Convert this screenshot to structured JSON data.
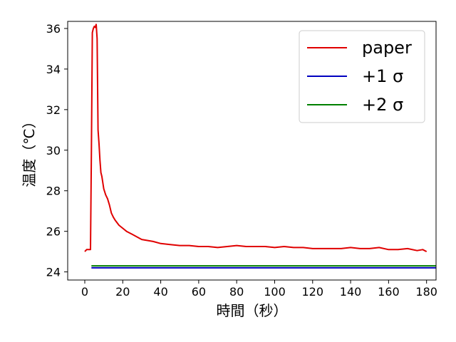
{
  "chart_data": {
    "type": "line",
    "xlabel": "時間（秒）",
    "ylabel": "温度（℃）",
    "xlim": [
      -9,
      185
    ],
    "ylim": [
      23.6,
      36.35
    ],
    "xticks": [
      0,
      20,
      40,
      60,
      80,
      100,
      120,
      140,
      160,
      180
    ],
    "yticks": [
      24,
      26,
      28,
      30,
      32,
      34,
      36
    ],
    "grid": false,
    "legend_position": "top-right",
    "series": [
      {
        "name": "paper",
        "color": "#e00000",
        "x": [
          0,
          1,
          2,
          3,
          3.5,
          4,
          4.5,
          5,
          5.5,
          6,
          6.5,
          7,
          7.5,
          8,
          8.5,
          9,
          10,
          11,
          12,
          13,
          14,
          15,
          16,
          18,
          20,
          22,
          25,
          28,
          30,
          33,
          36,
          40,
          45,
          50,
          55,
          60,
          65,
          70,
          75,
          80,
          85,
          90,
          95,
          100,
          105,
          110,
          115,
          120,
          125,
          130,
          135,
          140,
          145,
          150,
          155,
          160,
          165,
          170,
          175,
          178,
          180
        ],
        "values": [
          25.0,
          25.1,
          25.1,
          25.1,
          30.0,
          35.8,
          36.0,
          36.1,
          36.05,
          36.2,
          35.5,
          31.0,
          30.3,
          29.5,
          28.9,
          28.7,
          28.1,
          27.8,
          27.6,
          27.3,
          26.9,
          26.7,
          26.55,
          26.3,
          26.15,
          26.0,
          25.85,
          25.7,
          25.6,
          25.55,
          25.5,
          25.4,
          25.35,
          25.3,
          25.3,
          25.25,
          25.25,
          25.2,
          25.25,
          25.3,
          25.25,
          25.25,
          25.25,
          25.2,
          25.25,
          25.2,
          25.2,
          25.15,
          25.15,
          25.15,
          25.15,
          25.2,
          25.15,
          25.15,
          25.2,
          25.1,
          25.1,
          25.15,
          25.05,
          25.1,
          25.0
        ]
      },
      {
        "name": "+1 σ",
        "color": "#0000c0",
        "x": [
          3.5,
          185
        ],
        "values": [
          24.2,
          24.2
        ]
      },
      {
        "name": "+2 σ",
        "color": "#008000",
        "x": [
          3.5,
          185
        ],
        "values": [
          24.3,
          24.3
        ]
      }
    ]
  }
}
